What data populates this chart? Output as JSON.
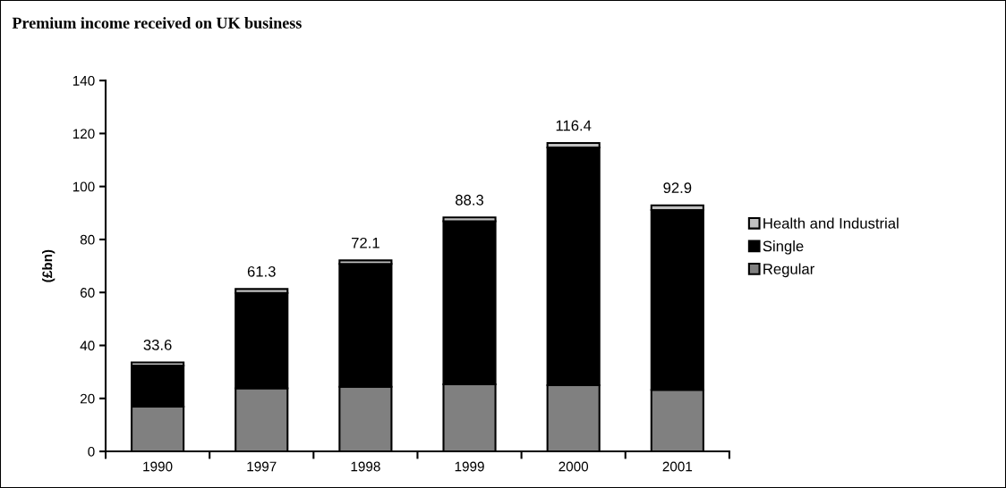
{
  "chart_data": {
    "type": "bar",
    "title": "Premium income received on UK business",
    "ylabel": "(£bn)",
    "categories": [
      "1990",
      "1997",
      "1998",
      "1999",
      "2000",
      "2001"
    ],
    "stacked": true,
    "series": [
      {
        "name": "Regular",
        "color": "#808080",
        "values": [
          16.9,
          23.8,
          24.4,
          25.3,
          25.0,
          23.2
        ]
      },
      {
        "name": "Single",
        "color": "#000000",
        "values": [
          15.5,
          36.0,
          46.4,
          61.6,
          89.7,
          67.9
        ]
      },
      {
        "name": "Health and Industrial",
        "color": "#c0c0c0",
        "values": [
          1.2,
          1.5,
          1.3,
          1.4,
          1.7,
          1.8
        ]
      }
    ],
    "totals": [
      "33.6",
      "61.3",
      "72.1",
      "88.3",
      "116.4",
      "92.9"
    ],
    "ylim": [
      0,
      140
    ],
    "yticks": [
      0,
      20,
      40,
      60,
      80,
      100,
      120,
      140
    ],
    "grid": false,
    "legend": "right"
  }
}
